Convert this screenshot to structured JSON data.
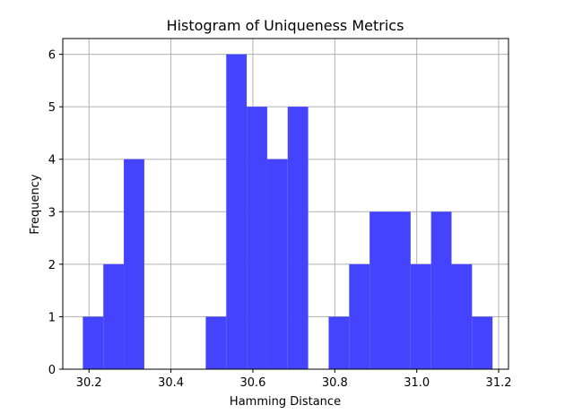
{
  "chart_data": {
    "type": "bar",
    "title": "Histogram of Uniqueness Metrics",
    "xlabel": "Hamming Distance",
    "ylabel": "Frequency",
    "xlim": [
      30.136,
      31.224
    ],
    "ylim": [
      0,
      6.3
    ],
    "xticks": [
      30.2,
      30.4,
      30.6,
      30.8,
      31.0,
      31.2
    ],
    "xtick_labels": [
      "30.2",
      "30.4",
      "30.6",
      "30.8",
      "31.0",
      "31.2"
    ],
    "yticks": [
      0,
      1,
      2,
      3,
      4,
      5,
      6
    ],
    "ytick_labels": [
      "0",
      "1",
      "2",
      "3",
      "4",
      "5",
      "6"
    ],
    "grid": true,
    "bar_color": "#4444ff",
    "bins": [
      {
        "x0": 30.185,
        "x1": 30.235,
        "count": 1
      },
      {
        "x0": 30.235,
        "x1": 30.285,
        "count": 2
      },
      {
        "x0": 30.285,
        "x1": 30.335,
        "count": 4
      },
      {
        "x0": 30.485,
        "x1": 30.535,
        "count": 1
      },
      {
        "x0": 30.535,
        "x1": 30.585,
        "count": 6
      },
      {
        "x0": 30.585,
        "x1": 30.635,
        "count": 5
      },
      {
        "x0": 30.635,
        "x1": 30.685,
        "count": 4
      },
      {
        "x0": 30.685,
        "x1": 30.735,
        "count": 5
      },
      {
        "x0": 30.785,
        "x1": 30.835,
        "count": 1
      },
      {
        "x0": 30.835,
        "x1": 30.885,
        "count": 2
      },
      {
        "x0": 30.885,
        "x1": 30.935,
        "count": 3
      },
      {
        "x0": 30.935,
        "x1": 30.985,
        "count": 3
      },
      {
        "x0": 30.985,
        "x1": 31.035,
        "count": 2
      },
      {
        "x0": 31.035,
        "x1": 31.085,
        "count": 3
      },
      {
        "x0": 31.085,
        "x1": 31.135,
        "count": 2
      },
      {
        "x0": 31.135,
        "x1": 31.185,
        "count": 1
      }
    ]
  }
}
